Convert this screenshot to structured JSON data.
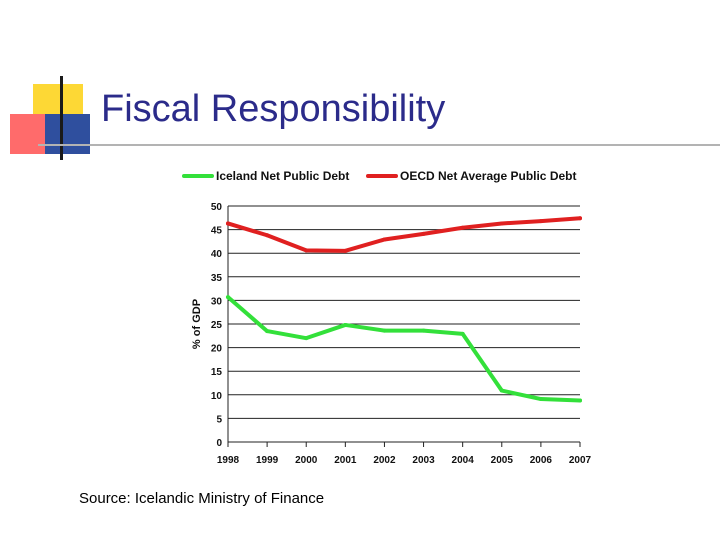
{
  "slide": {
    "title": "Fiscal Responsibility",
    "source": "Source: Icelandic Ministry of Finance"
  },
  "chart_data": {
    "type": "line",
    "title": "",
    "xlabel": "",
    "ylabel": "% of GDP",
    "categories": [
      "1998",
      "1999",
      "2000",
      "2001",
      "2002",
      "2003",
      "2004",
      "2005",
      "2006",
      "2007"
    ],
    "ylim": [
      0,
      50
    ],
    "yticks": [
      0,
      5,
      10,
      15,
      20,
      25,
      30,
      35,
      40,
      45,
      50
    ],
    "grid": true,
    "legend_position": "top",
    "series": [
      {
        "name": "Iceland Net Public Debt",
        "color": "#33e03a",
        "values": [
          30.7,
          23.5,
          22.0,
          24.8,
          23.6,
          23.6,
          22.9,
          10.9,
          9.1,
          8.8
        ]
      },
      {
        "name": "OECD Net Average Public Debt",
        "color": "#e02020",
        "values": [
          46.3,
          43.8,
          40.6,
          40.5,
          42.9,
          44.1,
          45.4,
          46.3,
          46.8,
          47.4
        ]
      }
    ]
  }
}
